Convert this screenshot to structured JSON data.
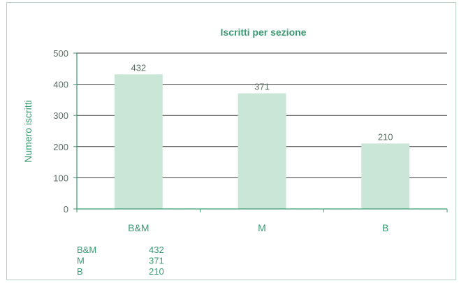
{
  "chart_data": {
    "type": "bar",
    "title": "Iscritti per sezione",
    "xlabel": "",
    "ylabel": "Numero iscritti",
    "categories": [
      "B&M",
      "M",
      "B"
    ],
    "values": [
      432,
      371,
      210
    ],
    "ylim": [
      0,
      500
    ],
    "yticks": [
      0,
      100,
      200,
      300,
      400,
      500
    ],
    "grid": true,
    "bar_color": "#c9e6d6",
    "accent_color": "#3a9a72",
    "data_table": [
      {
        "label": "B&M",
        "value": "432"
      },
      {
        "label": "M",
        "value": "371"
      },
      {
        "label": "B",
        "value": "210"
      }
    ]
  }
}
